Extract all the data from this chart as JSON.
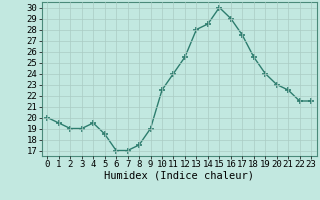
{
  "x": [
    0,
    1,
    2,
    3,
    4,
    5,
    6,
    7,
    8,
    9,
    10,
    11,
    12,
    13,
    14,
    15,
    16,
    17,
    18,
    19,
    20,
    21,
    22,
    23
  ],
  "y": [
    20,
    19.5,
    19,
    19,
    19.5,
    18.5,
    17,
    17,
    17.5,
    19,
    22.5,
    24,
    25.5,
    28,
    28.5,
    30,
    29,
    27.5,
    25.5,
    24,
    23,
    22.5,
    21.5,
    21.5
  ],
  "line_color": "#2d7d6e",
  "marker_color": "#2d7d6e",
  "bg_color": "#c2e8e0",
  "grid_color": "#aaccc4",
  "xlabel": "Humidex (Indice chaleur)",
  "ylim_min": 16.5,
  "ylim_max": 30.5,
  "xlim_min": -0.5,
  "xlim_max": 23.5,
  "yticks": [
    17,
    18,
    19,
    20,
    21,
    22,
    23,
    24,
    25,
    26,
    27,
    28,
    29,
    30
  ],
  "xticks": [
    0,
    1,
    2,
    3,
    4,
    5,
    6,
    7,
    8,
    9,
    10,
    11,
    12,
    13,
    14,
    15,
    16,
    17,
    18,
    19,
    20,
    21,
    22,
    23
  ],
  "tick_fontsize": 6.5,
  "xlabel_fontsize": 7.5,
  "linewidth": 1.0,
  "markersize": 4,
  "markeredgewidth": 1.2
}
